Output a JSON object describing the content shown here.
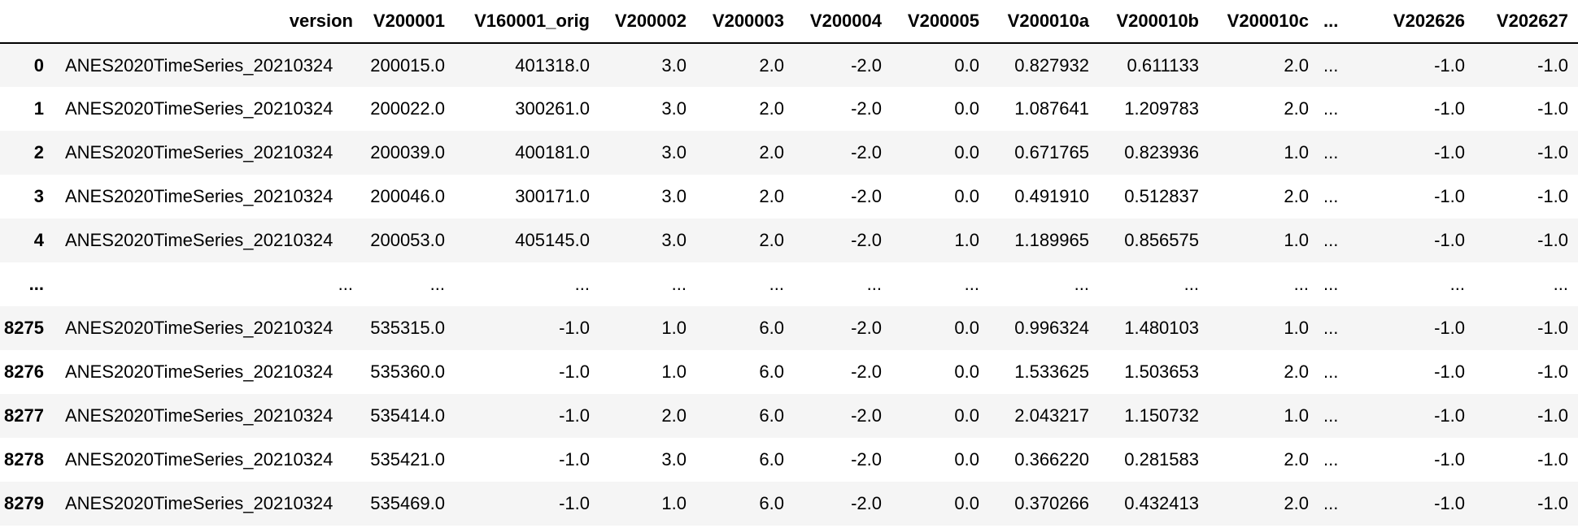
{
  "table": {
    "columns": [
      "",
      "version",
      "V200001",
      "V160001_orig",
      "V200002",
      "V200003",
      "V200004",
      "V200005",
      "V200010a",
      "V200010b",
      "V200010c",
      "...",
      "V202626",
      "V202627"
    ],
    "rows": [
      [
        "0",
        "ANES2020TimeSeries_20210324",
        "200015.0",
        "401318.0",
        "3.0",
        "2.0",
        "-2.0",
        "0.0",
        "0.827932",
        "0.611133",
        "2.0",
        "...",
        "-1.0",
        "-1.0"
      ],
      [
        "1",
        "ANES2020TimeSeries_20210324",
        "200022.0",
        "300261.0",
        "3.0",
        "2.0",
        "-2.0",
        "0.0",
        "1.087641",
        "1.209783",
        "2.0",
        "...",
        "-1.0",
        "-1.0"
      ],
      [
        "2",
        "ANES2020TimeSeries_20210324",
        "200039.0",
        "400181.0",
        "3.0",
        "2.0",
        "-2.0",
        "0.0",
        "0.671765",
        "0.823936",
        "1.0",
        "...",
        "-1.0",
        "-1.0"
      ],
      [
        "3",
        "ANES2020TimeSeries_20210324",
        "200046.0",
        "300171.0",
        "3.0",
        "2.0",
        "-2.0",
        "0.0",
        "0.491910",
        "0.512837",
        "2.0",
        "...",
        "-1.0",
        "-1.0"
      ],
      [
        "4",
        "ANES2020TimeSeries_20210324",
        "200053.0",
        "405145.0",
        "3.0",
        "2.0",
        "-2.0",
        "1.0",
        "1.189965",
        "0.856575",
        "1.0",
        "...",
        "-1.0",
        "-1.0"
      ],
      [
        "...",
        "...",
        "...",
        "...",
        "...",
        "...",
        "...",
        "...",
        "...",
        "...",
        "...",
        "...",
        "...",
        "..."
      ],
      [
        "8275",
        "ANES2020TimeSeries_20210324",
        "535315.0",
        "-1.0",
        "1.0",
        "6.0",
        "-2.0",
        "0.0",
        "0.996324",
        "1.480103",
        "1.0",
        "...",
        "-1.0",
        "-1.0"
      ],
      [
        "8276",
        "ANES2020TimeSeries_20210324",
        "535360.0",
        "-1.0",
        "1.0",
        "6.0",
        "-2.0",
        "0.0",
        "1.533625",
        "1.503653",
        "2.0",
        "...",
        "-1.0",
        "-1.0"
      ],
      [
        "8277",
        "ANES2020TimeSeries_20210324",
        "535414.0",
        "-1.0",
        "2.0",
        "6.0",
        "-2.0",
        "0.0",
        "2.043217",
        "1.150732",
        "1.0",
        "...",
        "-1.0",
        "-1.0"
      ],
      [
        "8278",
        "ANES2020TimeSeries_20210324",
        "535421.0",
        "-1.0",
        "3.0",
        "6.0",
        "-2.0",
        "0.0",
        "0.366220",
        "0.281583",
        "2.0",
        "...",
        "-1.0",
        "-1.0"
      ],
      [
        "8279",
        "ANES2020TimeSeries_20210324",
        "535469.0",
        "-1.0",
        "1.0",
        "6.0",
        "-2.0",
        "0.0",
        "0.370266",
        "0.432413",
        "2.0",
        "...",
        "-1.0",
        "-1.0"
      ]
    ]
  }
}
